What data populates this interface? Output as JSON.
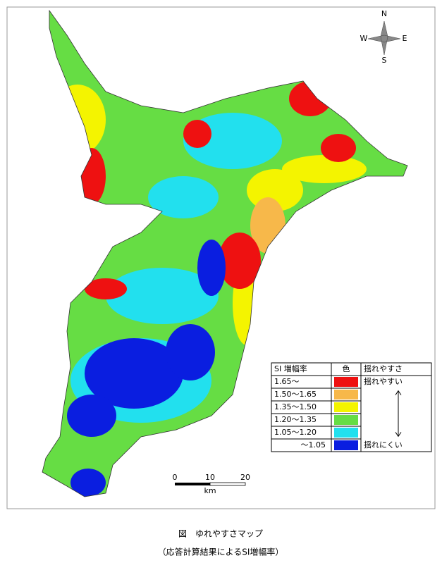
{
  "compass": {
    "north": "N",
    "east": "E",
    "south": "S",
    "west": "W"
  },
  "legend": {
    "headers": [
      "SI 増幅率",
      "色",
      "揺れやすさ"
    ],
    "rows": [
      {
        "label": "1.65～",
        "color": "#ee1111"
      },
      {
        "label": "1.50～1.65",
        "color": "#f7b84a"
      },
      {
        "label": "1.35～1.50",
        "color": "#f4f400"
      },
      {
        "label": "1.20～1.35",
        "color": "#66dd44"
      },
      {
        "label": "1.05～1.20",
        "color": "#22e0ee"
      },
      {
        "label": "～1.05",
        "color": "#0a1ee0"
      }
    ],
    "high": "揺れやすい",
    "low": "揺れにくい"
  },
  "scale": {
    "ticks": [
      "0",
      "10",
      "20"
    ],
    "unit": "km"
  },
  "caption": {
    "title": "図　ゆれやすさマップ",
    "subtitle": "（応答計算結果によるSI増幅率）"
  }
}
